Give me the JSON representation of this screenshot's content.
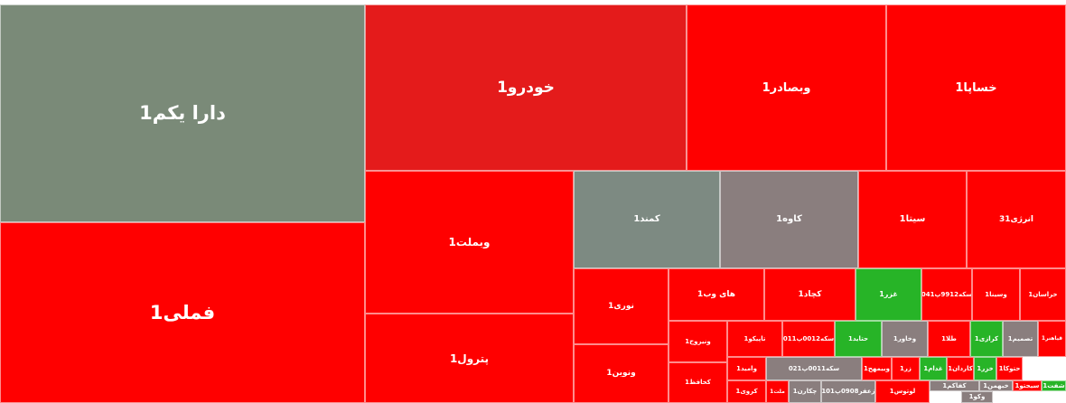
{
  "colors": {
    "loss": "#ff0000",
    "loss_mid": "#e41b1b",
    "neutral": "#7a8a78",
    "neutral_mauve": "#8a7e7e",
    "neutral_gray": "#7d8a82",
    "gain": "#27b427"
  },
  "chart_data": {
    "type": "treemap",
    "tiles": [
      {
        "label": "دارا یکم1",
        "color": "neutral"
      },
      {
        "label": "فملی1",
        "color": "loss"
      },
      {
        "label": "خودرو1",
        "color": "loss_mid"
      },
      {
        "label": "وبصادر1",
        "color": "loss"
      },
      {
        "label": "خساپا1",
        "color": "loss"
      },
      {
        "label": "وبملت1",
        "color": "loss"
      },
      {
        "label": "پترول1",
        "color": "loss"
      },
      {
        "label": "کمند1",
        "color": "neutral_gray"
      },
      {
        "label": "کاوه1",
        "color": "neutral_mauve"
      },
      {
        "label": "سیتا1",
        "color": "loss"
      },
      {
        "label": "انرژی31",
        "color": "loss"
      },
      {
        "label": "نوری1",
        "color": "loss"
      },
      {
        "label": "ونوین1",
        "color": "loss"
      },
      {
        "label": "های وب1",
        "color": "loss"
      },
      {
        "label": "کچاد1",
        "color": "loss"
      },
      {
        "label": "غزر1",
        "color": "gain"
      },
      {
        "label": "سکه9912پ041",
        "color": "loss"
      },
      {
        "label": "وسینا1",
        "color": "loss"
      },
      {
        "label": "خراسان1",
        "color": "loss"
      },
      {
        "label": "ونیروح1",
        "color": "loss"
      },
      {
        "label": "تاپیکو1",
        "color": "loss"
      },
      {
        "label": "سکه0012پ011",
        "color": "loss"
      },
      {
        "label": "حتاید1",
        "color": "gain"
      },
      {
        "label": "وخاور1",
        "color": "neutral_mauve"
      },
      {
        "label": "طلا1",
        "color": "loss"
      },
      {
        "label": "کرازی1",
        "color": "gain"
      },
      {
        "label": "تصمیم1",
        "color": "neutral_mauve"
      },
      {
        "label": "قیاهنر1",
        "color": "loss"
      },
      {
        "label": "کحافظ1",
        "color": "loss"
      },
      {
        "label": "وامید1",
        "color": "loss"
      },
      {
        "label": "سکه0011پ021",
        "color": "neutral_mauve"
      },
      {
        "label": "وبیمهح1",
        "color": "loss"
      },
      {
        "label": "زر1",
        "color": "loss"
      },
      {
        "label": "غدام1",
        "color": "gain"
      },
      {
        "label": "کاردان1",
        "color": "loss"
      },
      {
        "label": "خزر1",
        "color": "gain"
      },
      {
        "label": "حتوکا1",
        "color": "loss"
      },
      {
        "label": "کروی1",
        "color": "loss"
      },
      {
        "label": "ملت1",
        "color": "loss"
      },
      {
        "label": "چکارن1",
        "color": "neutral_mauve"
      },
      {
        "label": "زعفر0908پ101",
        "color": "neutral_mauve"
      },
      {
        "label": "لوتوس1",
        "color": "loss"
      },
      {
        "label": "کفاکم1",
        "color": "neutral_mauve"
      },
      {
        "label": "خبهمن1",
        "color": "neutral_mauve"
      },
      {
        "label": "سیجتو1",
        "color": "loss"
      },
      {
        "label": "شفت1",
        "color": "gain"
      },
      {
        "label": "وکو1",
        "color": "neutral_mauve"
      }
    ]
  }
}
